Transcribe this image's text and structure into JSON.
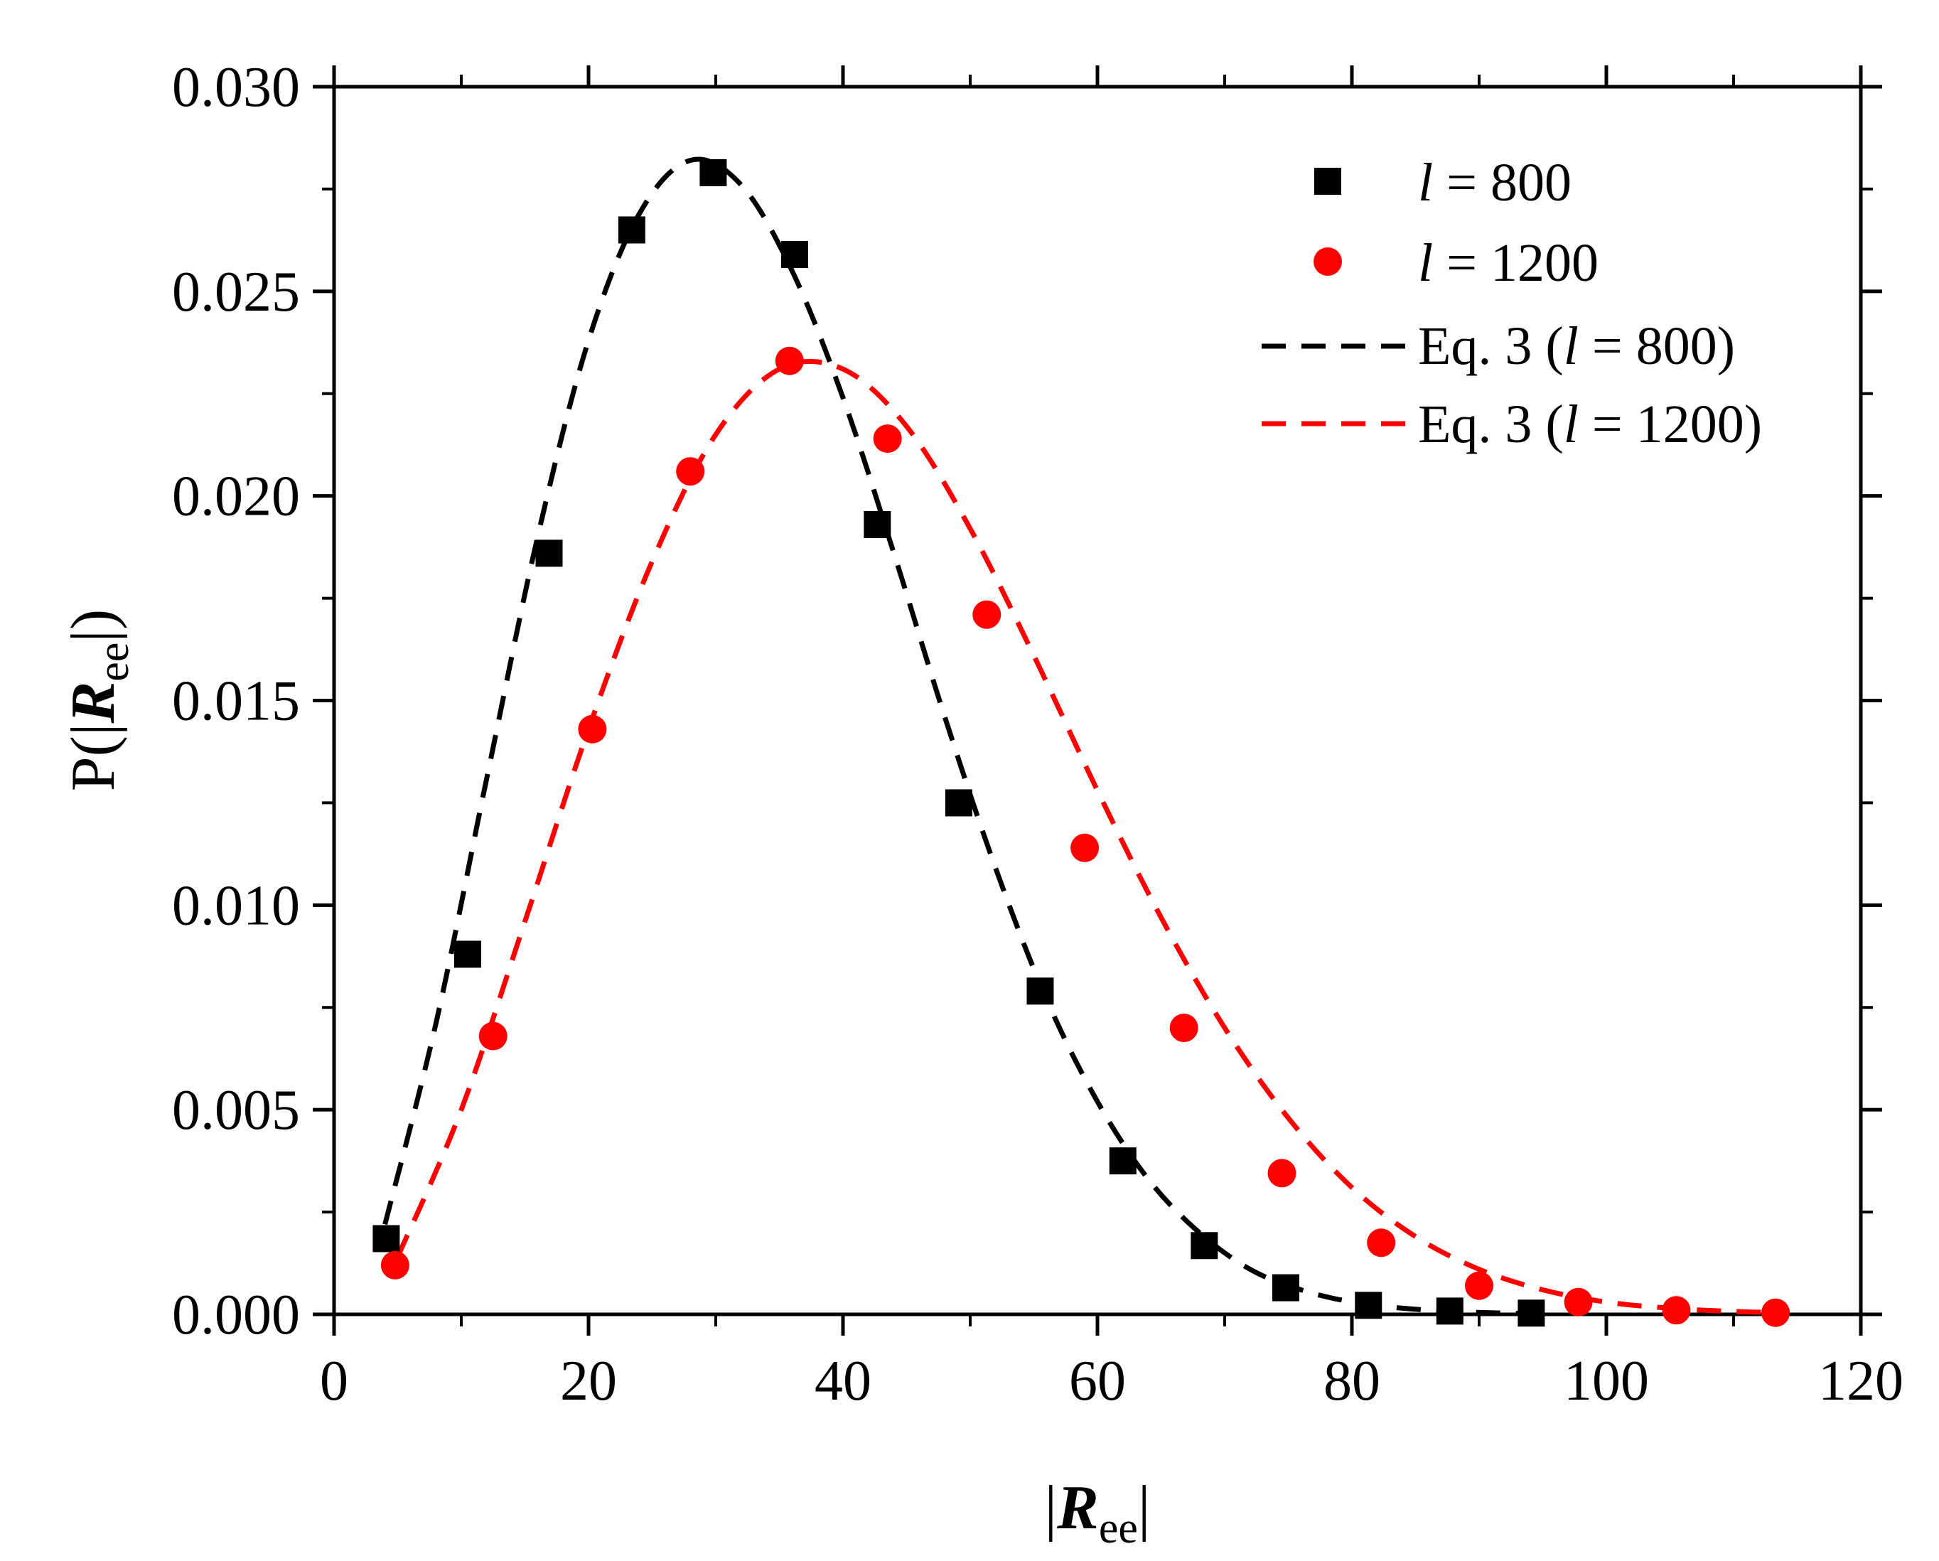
{
  "chart_data": {
    "type": "scatter",
    "title": "",
    "xlabel": {
      "prefix": "|",
      "symbol": "R",
      "sub": "ee",
      "suffix": "|"
    },
    "ylabel": {
      "prefix": "P(|",
      "symbol": "R",
      "sub": "ee",
      "suffix": "|)"
    },
    "xlim": [
      0,
      120
    ],
    "ylim": [
      0,
      0.03
    ],
    "x_ticks": [
      0,
      20,
      40,
      60,
      80,
      100,
      120
    ],
    "x_tick_labels": [
      "0",
      "20",
      "40",
      "60",
      "80",
      "100",
      "120"
    ],
    "y_ticks": [
      0,
      0.005,
      0.01,
      0.015,
      0.02,
      0.025,
      0.03
    ],
    "y_tick_labels": [
      "0.000",
      "0.005",
      "0.010",
      "0.015",
      "0.020",
      "0.025",
      "0.030"
    ],
    "grid": false,
    "legend_position": "top-right",
    "series": [
      {
        "name": "l = 800",
        "legend_var": "l",
        "legend_rest": " = 800",
        "kind": "markers",
        "marker": "square",
        "color": "#000000",
        "x": [
          4.1,
          10.5,
          16.9,
          23.4,
          29.8,
          36.2,
          42.7,
          49.1,
          55.5,
          62.0,
          68.4,
          74.8,
          81.3,
          87.7,
          94.1
        ],
        "y": [
          0.00185,
          0.0088,
          0.0186,
          0.0265,
          0.0279,
          0.0259,
          0.0193,
          0.0125,
          0.0079,
          0.00375,
          0.00168,
          0.00065,
          0.00022,
          8e-05,
          3e-05
        ]
      },
      {
        "name": "l = 1200",
        "legend_var": "l",
        "legend_rest": " = 1200",
        "kind": "markers",
        "marker": "circle",
        "color": "#ff0000",
        "x": [
          4.8,
          12.5,
          20.3,
          28.0,
          35.8,
          43.5,
          51.3,
          59.0,
          66.8,
          74.5,
          82.3,
          90.0,
          97.8,
          105.5,
          113.3
        ],
        "y": [
          0.0012,
          0.0068,
          0.0143,
          0.0206,
          0.0233,
          0.0214,
          0.0171,
          0.0114,
          0.007,
          0.00345,
          0.00175,
          0.0007,
          0.0003,
          0.0001,
          4e-05
        ]
      },
      {
        "name": "Eq. 3 (l = 800)",
        "legend_pre": "Eq. 3 (",
        "legend_var": "l",
        "legend_rest": " = 800)",
        "kind": "dashed-line",
        "color": "#000000",
        "x": [
          4,
          8,
          12,
          16,
          20,
          24,
          28,
          32,
          36,
          40,
          44,
          48,
          52,
          56,
          60,
          64,
          68,
          72,
          76,
          80,
          84,
          88,
          92,
          96
        ],
        "y": [
          0.0022,
          0.0071,
          0.0131,
          0.019,
          0.0238,
          0.0269,
          0.0282,
          0.0276,
          0.0255,
          0.0224,
          0.0186,
          0.0146,
          0.0109,
          0.0077,
          0.0052,
          0.0033,
          0.002,
          0.0011,
          0.0006,
          0.0003,
          0.00015,
          7e-05,
          3e-05,
          1e-05
        ]
      },
      {
        "name": "Eq. 3 (l = 1200)",
        "legend_pre": "Eq. 3 (",
        "legend_var": "l",
        "legend_rest": " = 1200)",
        "kind": "dashed-line",
        "color": "#ff0000",
        "x": [
          5,
          10,
          15,
          20,
          25,
          30,
          35,
          40,
          45,
          50,
          55,
          60,
          65,
          70,
          75,
          80,
          85,
          90,
          95,
          100,
          105,
          110,
          114
        ],
        "y": [
          0.0014,
          0.005,
          0.0096,
          0.0143,
          0.0184,
          0.0215,
          0.0231,
          0.0231,
          0.0217,
          0.0192,
          0.0161,
          0.0128,
          0.0097,
          0.007,
          0.0048,
          0.0031,
          0.0019,
          0.0011,
          0.0006,
          0.0003,
          0.00015,
          7e-05,
          4e-05
        ]
      }
    ]
  }
}
